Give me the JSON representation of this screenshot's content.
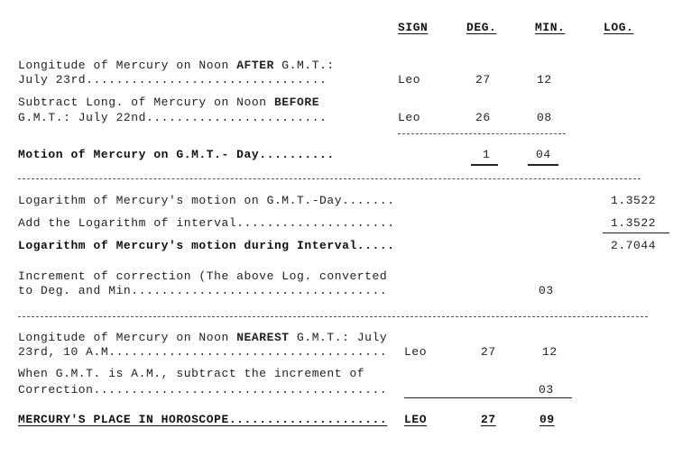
{
  "headers": {
    "sign": "SIGN",
    "deg": "DEG.",
    "min": "MIN.",
    "log": "LOG."
  },
  "rows": {
    "after": {
      "line1_pre": "Longitude of Mercury on Noon ",
      "line1_bold": "AFTER",
      "line1_post": " G.M.T.:",
      "line2": "July 23rd................................",
      "sign": "Leo",
      "deg": "27",
      "min": "12"
    },
    "before": {
      "line1_pre": "Subtract Long. of Mercury on Noon ",
      "line1_bold": "BEFORE",
      "line2": "G.M.T.: July 22nd........................",
      "sign": "Leo",
      "deg": "26",
      "min": "08"
    },
    "motion": {
      "label": "Motion of Mercury on G.M.T.- Day..........",
      "deg": "1",
      "min": "04"
    },
    "log_motion": {
      "label": "Logarithm of Mercury's motion on G.M.T.-Day.......",
      "log": "1.3522"
    },
    "log_interval": {
      "label": "Add the Logarithm of interval.....................",
      "log": "1.3522"
    },
    "log_during": {
      "label": "Logarithm of Mercury's motion during Interval.....",
      "log": "2.7044"
    },
    "increment": {
      "line1": "Increment of correction (The above Log. converted",
      "line2": "to Deg. and Min..................................",
      "min": "03"
    },
    "nearest": {
      "line1_pre": "Longitude of Mercury on Noon ",
      "line1_bold": "NEAREST",
      "line1_post": " G.M.T.: July",
      "line2": "23rd, 10 A.M.....................................",
      "sign": "Leo",
      "deg": "27",
      "min": "12"
    },
    "subtract": {
      "line1": "When G.M.T. is A.M., subtract the increment of",
      "line2": "Correction.......................................",
      "min": "03"
    },
    "result": {
      "label": "MERCURY'S PLACE IN HOROSCOPE.....................",
      "sign": "LEO",
      "deg": "27",
      "min": "09"
    }
  }
}
